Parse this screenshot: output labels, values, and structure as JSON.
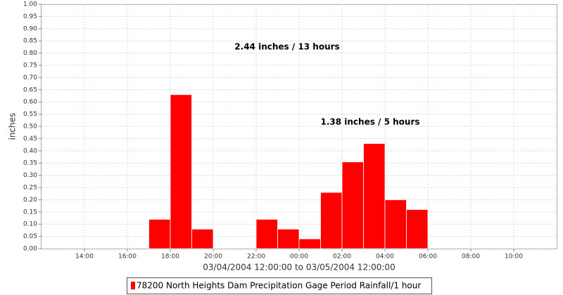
{
  "chart_data": {
    "type": "histogram",
    "x_label": "03/04/2004 12:00:00 to 03/05/2004 12:00:00",
    "y_label": "inches",
    "annotations": [
      "2.44 inches / 13 hours",
      "1.38 inches / 5 hours"
    ],
    "bins": [
      17,
      18,
      19,
      20,
      21,
      22,
      23,
      24,
      25,
      26,
      27,
      28,
      29,
      30
    ],
    "series": [
      {
        "name": "78200 North Heights Dam Precipitation Gage Period Rainfall/1 hour",
        "color": "#ff0000",
        "values": [
          0.12,
          0.63,
          0.08,
          0,
          0,
          0.12,
          0.08,
          0.04,
          0.23,
          0.355,
          0.43,
          0.2,
          0.16
        ]
      }
    ],
    "xlim": [
      12,
      36
    ],
    "xticks": [
      {
        "value": 14,
        "label": "14:00"
      },
      {
        "value": 16,
        "label": "16:00"
      },
      {
        "value": 18,
        "label": "18:00"
      },
      {
        "value": 20,
        "label": "20:00"
      },
      {
        "value": 22,
        "label": "22:00"
      },
      {
        "value": 24,
        "label": "00:00"
      },
      {
        "value": 26,
        "label": "02:00"
      },
      {
        "value": 28,
        "label": "04:00"
      },
      {
        "value": 30,
        "label": "06:00"
      },
      {
        "value": 32,
        "label": "08:00"
      },
      {
        "value": 34,
        "label": "10:00"
      }
    ],
    "ylim": [
      0,
      1
    ],
    "yticks": [
      {
        "value": 0,
        "label": "0.00"
      },
      {
        "value": 0.05,
        "label": "0.05"
      },
      {
        "value": 0.1,
        "label": "0.10"
      },
      {
        "value": 0.15,
        "label": "0.15"
      },
      {
        "value": 0.2,
        "label": "0.20"
      },
      {
        "value": 0.25,
        "label": "0.25"
      },
      {
        "value": 0.3,
        "label": "0.30"
      },
      {
        "value": 0.35,
        "label": "0.35"
      },
      {
        "value": 0.4,
        "label": "0.40"
      },
      {
        "value": 0.45,
        "label": "0.45"
      },
      {
        "value": 0.5,
        "label": "0.50"
      },
      {
        "value": 0.55,
        "label": "0.55"
      },
      {
        "value": 0.6,
        "label": "0.60"
      },
      {
        "value": 0.65,
        "label": "0.65"
      },
      {
        "value": 0.7,
        "label": "0.70"
      },
      {
        "value": 0.75,
        "label": "0.75"
      },
      {
        "value": 0.8,
        "label": "0.80"
      },
      {
        "value": 0.85,
        "label": "0.85"
      },
      {
        "value": 0.9,
        "label": "0.90"
      },
      {
        "value": 0.95,
        "label": "0.95"
      },
      {
        "value": 1,
        "label": "1.00"
      }
    ],
    "grid": true
  }
}
